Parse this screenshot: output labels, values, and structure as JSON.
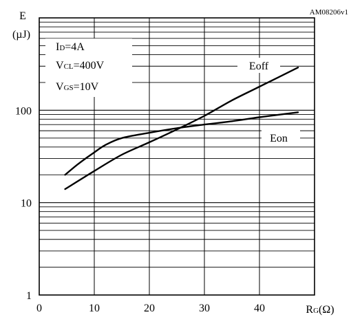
{
  "figure_id": "AM08206v1",
  "chart_data": {
    "type": "line",
    "y_scale": "log",
    "ylabel_top": "E",
    "ylabel_unit": "(µJ)",
    "xlabel_main": "R",
    "xlabel_sub": "G",
    "xlabel_unit": "(Ω)",
    "xlim": [
      0,
      50
    ],
    "ylim": [
      1,
      1000
    ],
    "x_ticks": [
      0,
      10,
      20,
      30,
      40
    ],
    "x_tick_labels": [
      "0",
      "10",
      "20",
      "30",
      "40"
    ],
    "y_tick_labels": [
      "1",
      "10",
      "100"
    ],
    "grid": true,
    "conditions": [
      {
        "main": "I",
        "sub": "D",
        "rest": "=4A"
      },
      {
        "main": "V",
        "sub": "CL",
        "rest": "=400V"
      },
      {
        "main": "V",
        "sub": "GS",
        "rest": "=10V"
      }
    ],
    "series": [
      {
        "name": "Eoff",
        "x": [
          4.7,
          10,
          15,
          20,
          25,
          30,
          35,
          40,
          47
        ],
        "y": [
          14,
          22,
          33,
          45,
          62,
          87,
          128,
          180,
          290
        ]
      },
      {
        "name": "Eon",
        "x": [
          4.7,
          7,
          10,
          12,
          15,
          20,
          25,
          30,
          35,
          40,
          47
        ],
        "y": [
          20,
          26,
          35,
          42,
          50,
          57,
          64,
          70,
          76,
          84,
          95
        ]
      }
    ]
  }
}
